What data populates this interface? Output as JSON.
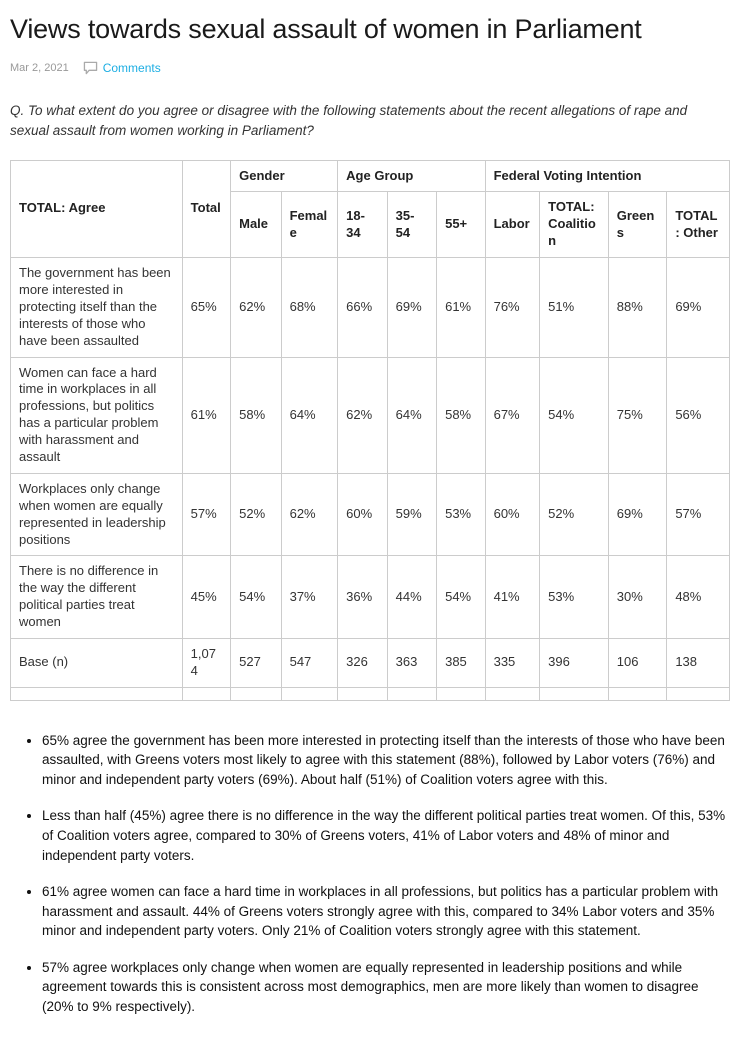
{
  "page": {
    "title": "Views towards sexual assault of women in Parliament",
    "date": "Mar 2, 2021",
    "comments_label": "Comments",
    "question": "Q. To what extent do you agree or disagree with the following statements about the recent allegations of rape and sexual assault from women working in Parliament?"
  },
  "colors": {
    "accent_link": "#1daee3",
    "table_border": "#cccccc"
  },
  "table": {
    "corner_label": "TOTAL: Agree",
    "total_label": "Total",
    "groups": [
      {
        "label": "Gender",
        "span": 2
      },
      {
        "label": "Age Group",
        "span": 3
      },
      {
        "label": "Federal Voting Intention",
        "span": 4
      }
    ],
    "columns": [
      "Male",
      "Female",
      "18-34",
      "35-54",
      "55+",
      "Labor",
      "TOTAL: Coalition",
      "Greens",
      "TOTAL: Other"
    ],
    "rows": [
      {
        "label": "The government has been more interested in protecting itself than the interests of those who have been assaulted",
        "values": [
          "65%",
          "62%",
          "68%",
          "66%",
          "69%",
          "61%",
          "76%",
          "51%",
          "88%",
          "69%"
        ]
      },
      {
        "label": "Women can face a hard time in workplaces in all professions, but politics has a particular problem with harassment and assault",
        "values": [
          "61%",
          "58%",
          "64%",
          "62%",
          "64%",
          "58%",
          "67%",
          "54%",
          "75%",
          "56%"
        ]
      },
      {
        "label": "Workplaces only change when women are equally represented in leadership positions",
        "values": [
          "57%",
          "52%",
          "62%",
          "60%",
          "59%",
          "53%",
          "60%",
          "52%",
          "69%",
          "57%"
        ]
      },
      {
        "label": "There is no difference in the way the different political parties treat women",
        "values": [
          "45%",
          "54%",
          "37%",
          "36%",
          "44%",
          "54%",
          "41%",
          "53%",
          "30%",
          "48%"
        ]
      },
      {
        "label": "Base (n)",
        "values": [
          "1,074",
          "527",
          "547",
          "326",
          "363",
          "385",
          "335",
          "396",
          "106",
          "138"
        ]
      }
    ]
  },
  "bullets": [
    "65% agree the government has been more interested in protecting itself than the interests of those who have been assaulted, with Greens voters most likely to agree with this statement (88%), followed by Labor voters (76%) and minor and independent party voters (69%). About half (51%) of Coalition voters agree with this.",
    "Less than half (45%) agree there is no difference in the way the different political parties treat women. Of this, 53% of Coalition voters agree, compared to 30% of Greens voters, 41% of Labor voters and 48% of minor and independent party voters.",
    "61% agree women can face a hard time in workplaces in all professions, but politics has a particular problem with harassment and assault. 44% of Greens voters strongly agree with this, compared to 34% Labor voters and 35% minor and independent party voters. Only 21% of Coalition voters strongly agree with this statement.",
    "57% agree workplaces only change when women are equally represented in leadership positions and while agreement towards this is consistent across most demographics, men are more likely than women to disagree (20% to 9% respectively)."
  ]
}
